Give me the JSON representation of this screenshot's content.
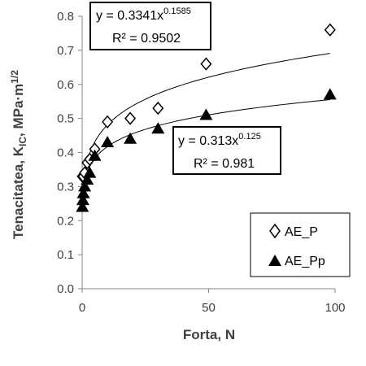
{
  "chart_data": {
    "type": "scatter",
    "title": "",
    "xlabel": "Forta, N",
    "ylabel_parts": {
      "main": "Tenacitatea, K",
      "sub": "IC",
      "tail": ", MPa·m",
      "sup": "1/2"
    },
    "xlim": [
      0,
      100
    ],
    "ylim": [
      0.0,
      0.8
    ],
    "xticks": [
      "0",
      "50",
      "100"
    ],
    "yticks": [
      "0.0",
      "0.1",
      "0.2",
      "0.3",
      "0.4",
      "0.5",
      "0.6",
      "0.7",
      "0.8"
    ],
    "grid": false,
    "legend_position": "bottom-right",
    "series": [
      {
        "name": "AE_P",
        "marker": "diamond-open",
        "x": [
          0.1,
          0.5,
          1,
          2,
          3,
          5,
          10,
          19,
          30,
          49,
          98
        ],
        "y": [
          0.33,
          0.33,
          0.34,
          0.37,
          0.38,
          0.41,
          0.49,
          0.5,
          0.53,
          0.66,
          0.76
        ],
        "fit": {
          "type": "power",
          "a": 0.3341,
          "b": 0.1585
        },
        "equation": {
          "lhs": "y = 0.3341x",
          "exp": "0.1585",
          "r2": "R² = 0.9502"
        }
      },
      {
        "name": "AE_Pp",
        "marker": "triangle-filled",
        "x": [
          0.1,
          0.3,
          0.5,
          1,
          2,
          3,
          5,
          10,
          19,
          30,
          49,
          98
        ],
        "y": [
          0.24,
          0.26,
          0.28,
          0.3,
          0.32,
          0.34,
          0.39,
          0.43,
          0.44,
          0.47,
          0.51,
          0.57
        ],
        "fit": {
          "type": "power",
          "a": 0.313,
          "b": 0.125
        },
        "equation": {
          "lhs": "y = 0.313x",
          "exp": "0.125",
          "r2": "R² = 0.981"
        }
      }
    ]
  }
}
